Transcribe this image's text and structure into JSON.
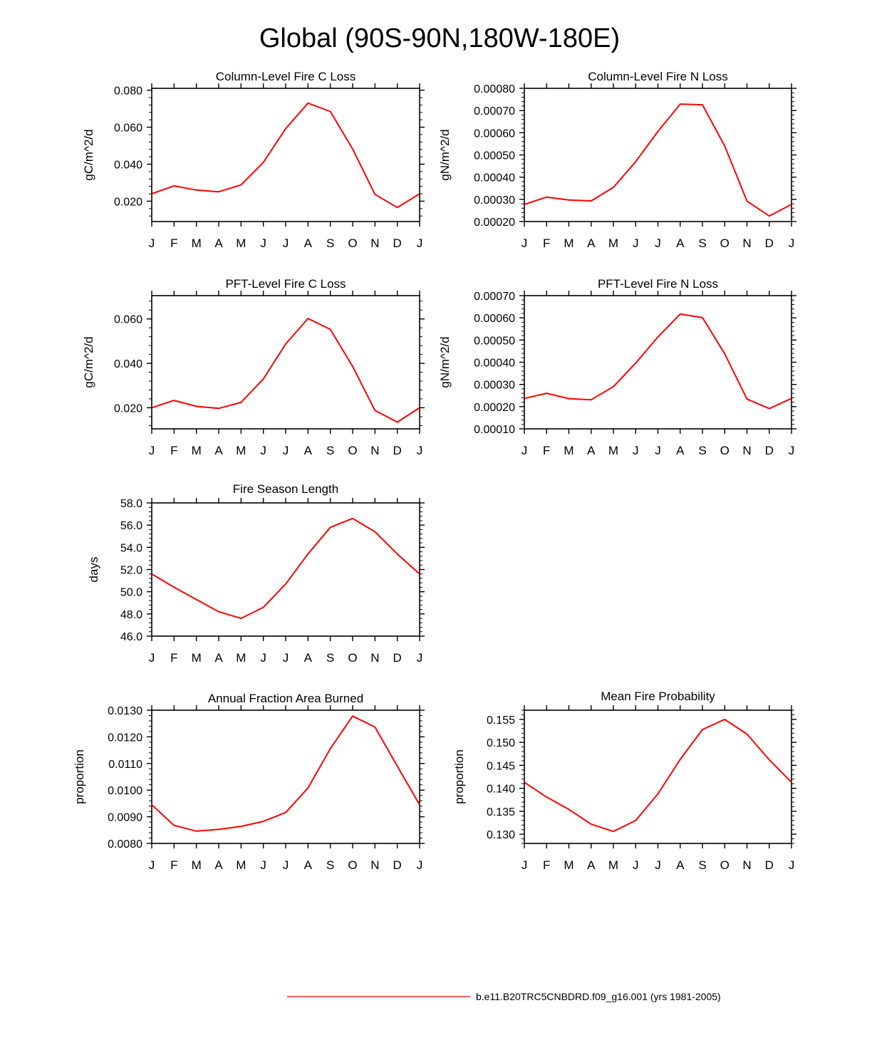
{
  "title": "Global (90S-90N,180W-180E)",
  "legend": {
    "label": "b.e11.B20TRC5CNBDRD.f09_g16.001 (yrs 1981-2005)",
    "color": "#ff0000"
  },
  "line_color": "#ff0000",
  "chart_data": [
    {
      "type": "line",
      "title": "Column-Level Fire C Loss",
      "ylabel": "gC/m^2/d",
      "categories": [
        "J",
        "F",
        "M",
        "A",
        "M",
        "J",
        "J",
        "A",
        "S",
        "O",
        "N",
        "D",
        "J"
      ],
      "ylim": [
        0.009,
        0.081
      ],
      "yticks": [
        "0.020",
        "0.040",
        "0.060",
        "0.080"
      ],
      "ytick_values": [
        0.02,
        0.04,
        0.06,
        0.08
      ],
      "series": [
        {
          "values": [
            0.024,
            0.0283,
            0.026,
            0.0251,
            0.0288,
            0.041,
            0.0592,
            0.073,
            0.0685,
            0.0482,
            0.0237,
            0.0166,
            0.024
          ]
        }
      ]
    },
    {
      "type": "line",
      "title": "Column-Level Fire N Loss",
      "ylabel": "gN/m^2/d",
      "categories": [
        "J",
        "F",
        "M",
        "A",
        "M",
        "J",
        "J",
        "A",
        "S",
        "O",
        "N",
        "D",
        "J"
      ],
      "ylim": [
        0.0002,
        0.0008
      ],
      "yticks": [
        "0.00020",
        "0.00030",
        "0.00040",
        "0.00050",
        "0.00060",
        "0.00070",
        "0.00080"
      ],
      "ytick_values": [
        0.0002,
        0.0003,
        0.0004,
        0.0005,
        0.0006,
        0.0007,
        0.0008
      ],
      "series": [
        {
          "values": [
            0.000277,
            0.00031,
            0.000297,
            0.000293,
            0.000354,
            0.00047,
            0.000606,
            0.000729,
            0.000726,
            0.00054,
            0.000292,
            0.000225,
            0.000277
          ]
        }
      ]
    },
    {
      "type": "line",
      "title": "PFT-Level Fire C Loss",
      "ylabel": "gC/m^2/d",
      "categories": [
        "J",
        "F",
        "M",
        "A",
        "M",
        "J",
        "J",
        "A",
        "S",
        "O",
        "N",
        "D",
        "J"
      ],
      "ylim": [
        0.0105,
        0.0705
      ],
      "yticks": [
        "0.020",
        "0.040",
        "0.060"
      ],
      "ytick_values": [
        0.02,
        0.04,
        0.06
      ],
      "series": [
        {
          "values": [
            0.02,
            0.0233,
            0.0206,
            0.0197,
            0.0224,
            0.033,
            0.0487,
            0.0602,
            0.0553,
            0.0386,
            0.0188,
            0.0135,
            0.02
          ]
        }
      ]
    },
    {
      "type": "line",
      "title": "PFT-Level Fire N Loss",
      "ylabel": "gN/m^2/d",
      "categories": [
        "J",
        "F",
        "M",
        "A",
        "M",
        "J",
        "J",
        "A",
        "S",
        "O",
        "N",
        "D",
        "J"
      ],
      "ylim": [
        0.0001,
        0.0007
      ],
      "yticks": [
        "0.00010",
        "0.00020",
        "0.00030",
        "0.00040",
        "0.00050",
        "0.00060",
        "0.00070"
      ],
      "ytick_values": [
        0.0001,
        0.0002,
        0.0003,
        0.0004,
        0.0005,
        0.0006,
        0.0007
      ],
      "series": [
        {
          "values": [
            0.000237,
            0.00026,
            0.000236,
            0.000231,
            0.00029,
            0.000396,
            0.000514,
            0.000617,
            0.000601,
            0.000438,
            0.000234,
            0.000191,
            0.000237
          ]
        }
      ]
    },
    {
      "type": "line",
      "title": "Fire Season Length",
      "ylabel": "days",
      "categories": [
        "J",
        "F",
        "M",
        "A",
        "M",
        "J",
        "J",
        "A",
        "S",
        "O",
        "N",
        "D",
        "J"
      ],
      "ylim": [
        46.0,
        58.0
      ],
      "yticks": [
        "46.0",
        "48.0",
        "50.0",
        "52.0",
        "54.0",
        "56.0",
        "58.0"
      ],
      "ytick_values": [
        46,
        48,
        50,
        52,
        54,
        56,
        58
      ],
      "series": [
        {
          "values": [
            51.6,
            50.4,
            49.3,
            48.2,
            47.6,
            48.6,
            50.7,
            53.4,
            55.8,
            56.6,
            55.4,
            53.4,
            51.6
          ]
        }
      ]
    },
    {
      "type": "line",
      "title": "Annual Fraction Area Burned",
      "ylabel": "proportion",
      "categories": [
        "J",
        "F",
        "M",
        "A",
        "M",
        "J",
        "J",
        "A",
        "S",
        "O",
        "N",
        "D",
        "J"
      ],
      "ylim": [
        0.008,
        0.013
      ],
      "yticks": [
        "0.0080",
        "0.0090",
        "0.0100",
        "0.0110",
        "0.0120",
        "0.0130"
      ],
      "ytick_values": [
        0.008,
        0.009,
        0.01,
        0.011,
        0.012,
        0.013
      ],
      "series": [
        {
          "values": [
            0.00945,
            0.00868,
            0.00846,
            0.00853,
            0.00864,
            0.00883,
            0.00916,
            0.01008,
            0.01156,
            0.01278,
            0.01237,
            0.0109,
            0.00945
          ]
        }
      ]
    },
    {
      "type": "line",
      "title": "Mean Fire Probability",
      "ylabel": "proportion",
      "categories": [
        "J",
        "F",
        "M",
        "A",
        "M",
        "J",
        "J",
        "A",
        "S",
        "O",
        "N",
        "D",
        "J"
      ],
      "ylim": [
        0.128,
        0.157
      ],
      "yticks": [
        "0.130",
        "0.135",
        "0.140",
        "0.145",
        "0.150",
        "0.155"
      ],
      "ytick_values": [
        0.13,
        0.135,
        0.14,
        0.145,
        0.15,
        0.155
      ],
      "series": [
        {
          "values": [
            0.1413,
            0.1381,
            0.1354,
            0.1322,
            0.1306,
            0.133,
            0.1388,
            0.1463,
            0.1528,
            0.155,
            0.1518,
            0.1462,
            0.1413
          ]
        }
      ]
    }
  ]
}
